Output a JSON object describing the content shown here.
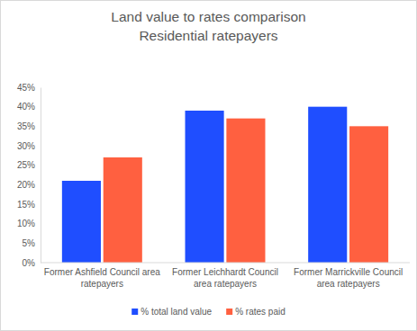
{
  "chart_data": {
    "type": "bar",
    "title": "Land value to rates comparison",
    "subtitle": "Residential ratepayers",
    "categories": [
      "Former Ashfield Council area ratepayers",
      "Former Leichhardt Council area ratepayers",
      "Former Marrickville Council area ratepayers"
    ],
    "series": [
      {
        "name": "% total land value",
        "color": "#1f4eff",
        "values": [
          21,
          39,
          40
        ]
      },
      {
        "name": "% rates paid",
        "color": "#ff6040",
        "values": [
          27,
          37,
          35
        ]
      }
    ],
    "ylim": [
      0,
      45
    ],
    "yticks": [
      {
        "value": 0,
        "label": "0%"
      },
      {
        "value": 5,
        "label": "5%"
      },
      {
        "value": 10,
        "label": "10%"
      },
      {
        "value": 15,
        "label": "15%"
      },
      {
        "value": 20,
        "label": "20%"
      },
      {
        "value": 25,
        "label": "25%"
      },
      {
        "value": 30,
        "label": "30%"
      },
      {
        "value": 35,
        "label": "35%"
      },
      {
        "value": 40,
        "label": "40%"
      },
      {
        "value": 45,
        "label": "45%"
      }
    ],
    "grid": false,
    "legend": "bottom"
  }
}
